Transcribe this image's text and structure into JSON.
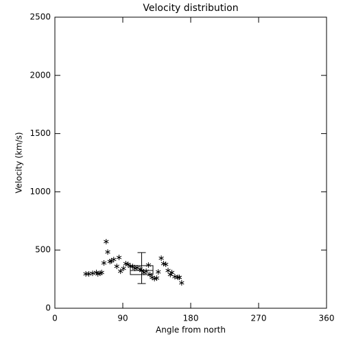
{
  "chart_data": {
    "type": "scatter",
    "title": "Velocity distribution",
    "x_label": "Angle from north",
    "y_label": "Velocity (km/s)",
    "xlim": [
      0,
      360
    ],
    "xticks": [
      0,
      90,
      180,
      270,
      360
    ],
    "ylim": [
      0,
      2500
    ],
    "yticks": [
      0,
      500,
      1000,
      1500,
      2000,
      2500
    ],
    "color": "#000000",
    "x": [
      41,
      45,
      50,
      55,
      57,
      60,
      62,
      65,
      68,
      70,
      73,
      75,
      78,
      82,
      85,
      87,
      91,
      94,
      97,
      100,
      103,
      106,
      109,
      113,
      115,
      118,
      121,
      124,
      126,
      129,
      132,
      135,
      137,
      141,
      144,
      147,
      150,
      153,
      155,
      159,
      163,
      165,
      168
    ],
    "values": [
      295,
      295,
      300,
      307,
      295,
      300,
      307,
      389,
      572,
      483,
      401,
      407,
      419,
      360,
      436,
      318,
      342,
      383,
      377,
      360,
      360,
      342,
      348,
      336,
      324,
      307,
      318,
      371,
      289,
      265,
      254,
      259,
      312,
      430,
      383,
      377,
      324,
      289,
      307,
      271,
      265,
      265,
      218
    ],
    "box": {
      "x": [
        100,
        130
      ],
      "q1": 289,
      "median": 324,
      "q3": 366
    },
    "error_bar": {
      "x": 115,
      "low": 212,
      "high": 478
    }
  }
}
